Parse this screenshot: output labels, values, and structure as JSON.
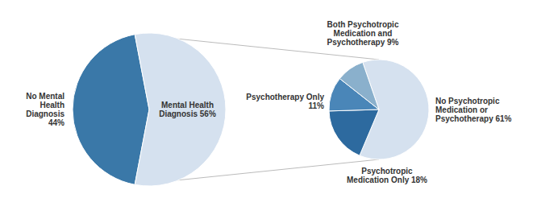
{
  "chart_data": [
    {
      "type": "pie",
      "categories": [
        "No Mental\nHealth\nDiagnosis\n44%",
        "Mental Health\nDiagnosis 56%"
      ],
      "values": [
        44,
        56
      ],
      "colors": [
        "#3A78A8",
        "#D5E1EF"
      ]
    },
    {
      "type": "pie",
      "categories": [
        "No Psychotropic\nMedication or\nPsychotherapy 61%",
        "Psychotropic\nMedication Only 18%",
        "Psychotherapy Only\n11%",
        "Both Psychotropic\nMedication and\nPsychotherapy 9%"
      ],
      "values": [
        61,
        18,
        11,
        9
      ],
      "colors": [
        "#D5E1EF",
        "#2D6A9F",
        "#4A86B8",
        "#8AB0CC"
      ]
    }
  ]
}
